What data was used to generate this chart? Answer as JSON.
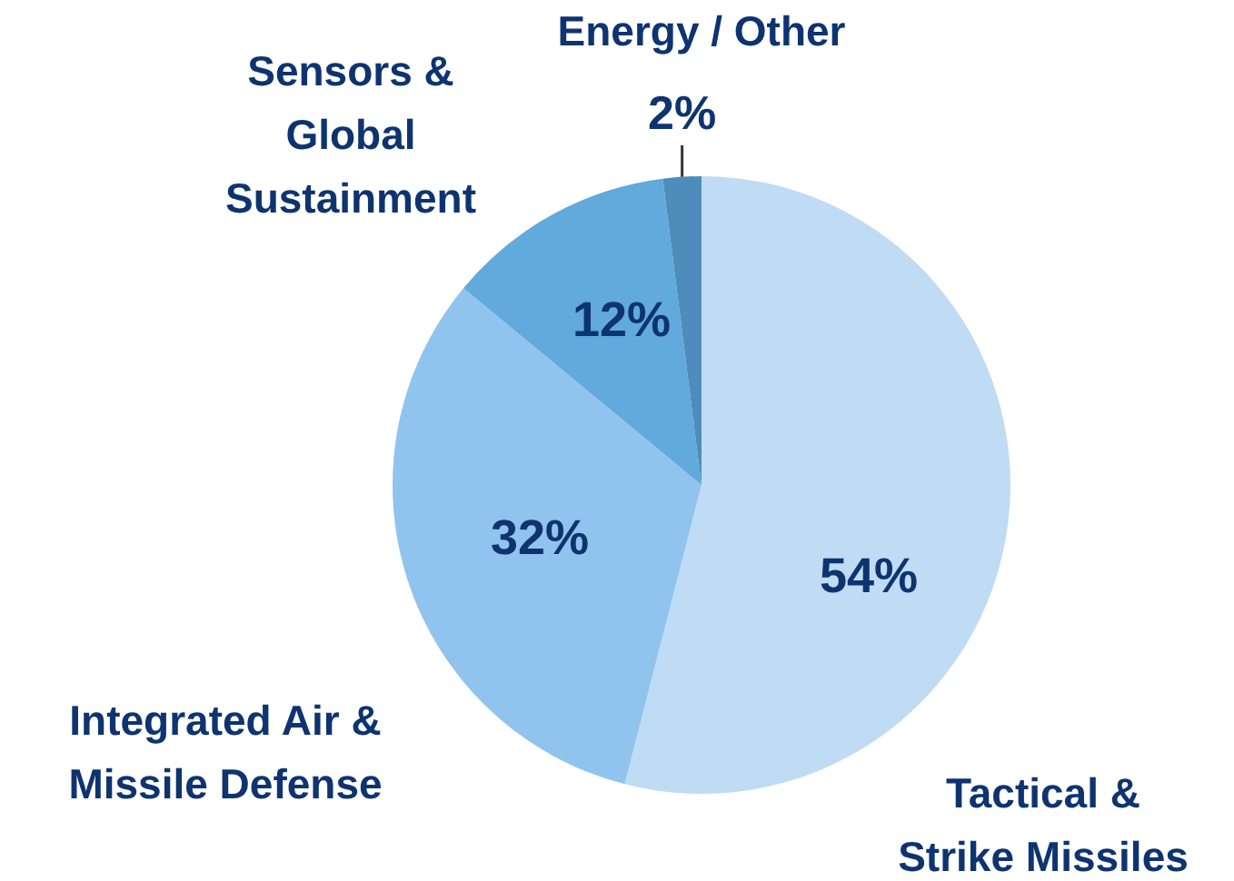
{
  "chart_data": {
    "type": "pie",
    "categories": [
      "Tactical & Strike Missiles",
      "Integrated Air & Missile Defense",
      "Sensors & Global Sustainment",
      "Energy / Other"
    ],
    "values": [
      54,
      32,
      12,
      2
    ],
    "colors": [
      "#c0dbf4",
      "#90c4ee",
      "#62a9dc",
      "#4e8cbb"
    ],
    "value_labels": [
      "54%",
      "32%",
      "12%",
      "2%"
    ]
  }
}
